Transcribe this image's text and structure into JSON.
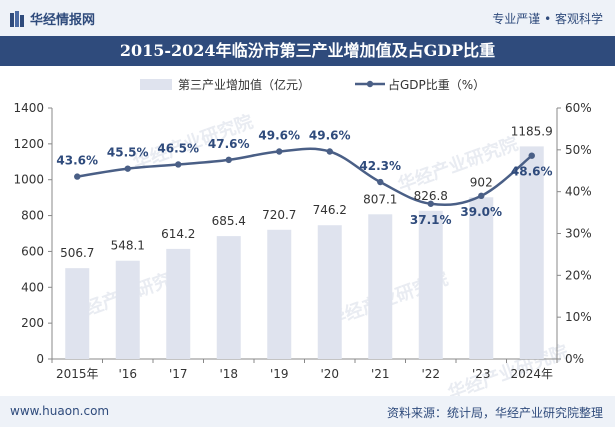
{
  "header": {
    "brand": "华经情报网",
    "slogan": "专业严谨 • 客观科学"
  },
  "footer": {
    "url": "www.huaon.com",
    "source": "资料来源：统计局，华经产业研究院整理"
  },
  "watermark": "华经产业研究院",
  "colors": {
    "bar": "#dfe3ee",
    "line": "#4a5f86",
    "accent": "#2f4b7c"
  },
  "chart_data": {
    "type": "bar",
    "title": "2015-2024年临汾市第三产业增加值及占GDP比重",
    "categories": [
      "2015年",
      "'16",
      "'17",
      "'18",
      "'19",
      "'20",
      "'21",
      "'22",
      "'23",
      "2024年"
    ],
    "series": [
      {
        "name": "第三产业增加值（亿元）",
        "type": "bar",
        "axis": "left",
        "values": [
          506.7,
          548.1,
          614.2,
          685.4,
          720.7,
          746.2,
          807.1,
          826.8,
          902,
          1185.9
        ],
        "labels": [
          "506.7",
          "548.1",
          "614.2",
          "685.4",
          "720.7",
          "746.2",
          "807.1",
          "826.8",
          "902",
          "1185.9"
        ]
      },
      {
        "name": "占GDP比重（%）",
        "type": "line",
        "axis": "right",
        "values": [
          43.6,
          45.5,
          46.5,
          47.6,
          49.6,
          49.6,
          42.3,
          37.1,
          39.0,
          48.6
        ],
        "labels": [
          "43.6%",
          "45.5%",
          "46.5%",
          "47.6%",
          "49.6%",
          "49.6%",
          "42.3%",
          "37.1%",
          "39.0%",
          "48.6%"
        ]
      }
    ],
    "yLeft": {
      "min": 0,
      "max": 1400,
      "ticks": [
        "0",
        "200",
        "400",
        "600",
        "800",
        "1000",
        "1200",
        "1400"
      ]
    },
    "yRight": {
      "min": 0,
      "max": 60,
      "ticks": [
        "0%",
        "10%",
        "20%",
        "30%",
        "40%",
        "50%",
        "60%"
      ]
    },
    "legend_position": "top-center",
    "grid": false
  }
}
